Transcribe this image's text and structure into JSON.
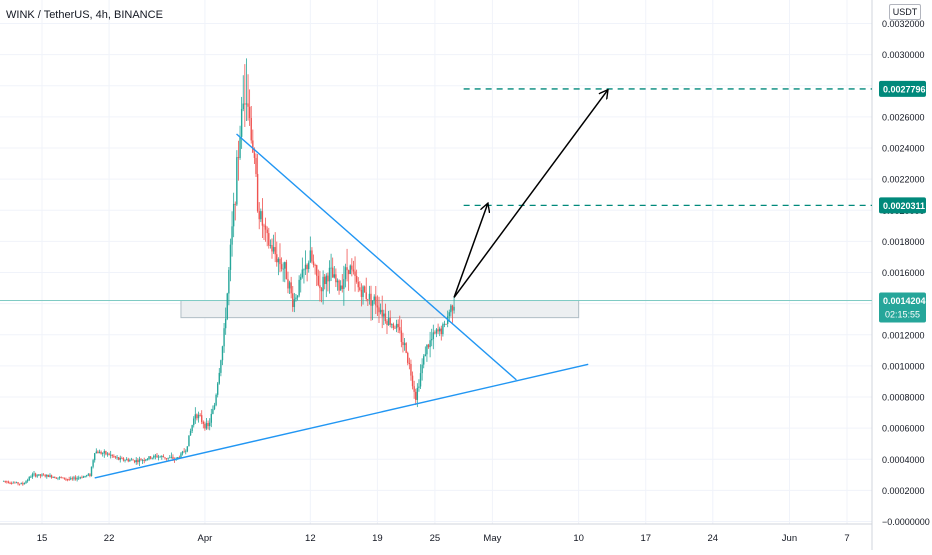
{
  "header": {
    "symbol_title": "WINK / TetherUS, 4h, BINANCE",
    "currency_label": "USDT"
  },
  "colors": {
    "up": "#26a69a",
    "down": "#ef5350",
    "trendline": "#2196f3",
    "target_line": "#00897b",
    "price_line": "#80cbc4",
    "zone_fill": "#eceff1",
    "zone_stroke": "#b0bec5",
    "arrow": "#000000",
    "grid": "#f0f3fa",
    "axis_text": "#131722"
  },
  "chart_data": {
    "type": "candlestick",
    "title": "WINK / TetherUS, 4h, BINANCE",
    "ylim": [
      -0.0,
      0.0032
    ],
    "y_ticks": [
      {
        "value": 0.0032,
        "label": "0.0032000"
      },
      {
        "value": 0.003,
        "label": "0.0030000"
      },
      {
        "value": 0.0028,
        "label": "0.0028000"
      },
      {
        "value": 0.0026,
        "label": "0.0026000"
      },
      {
        "value": 0.0024,
        "label": "0.0024000"
      },
      {
        "value": 0.0022,
        "label": "0.0022000"
      },
      {
        "value": 0.002,
        "label": "0.0020000"
      },
      {
        "value": 0.0018,
        "label": "0.0018000"
      },
      {
        "value": 0.0016,
        "label": "0.0016000"
      },
      {
        "value": 0.0014,
        "label": "0.0014000"
      },
      {
        "value": 0.0012,
        "label": "0.0012000"
      },
      {
        "value": 0.001,
        "label": "0.0010000"
      },
      {
        "value": 0.0008,
        "label": "0.0008000"
      },
      {
        "value": 0.0006,
        "label": "0.0006000"
      },
      {
        "value": 0.0004,
        "label": "0.0004000"
      },
      {
        "value": 0.0002,
        "label": "0.0002000"
      },
      {
        "value": 0.0,
        "label": "−0.0000000"
      }
    ],
    "x_ticks": [
      {
        "day": 15,
        "label": "15"
      },
      {
        "day": 22,
        "label": "22"
      },
      {
        "day": 32,
        "label": "Apr"
      },
      {
        "day": 43,
        "label": "12"
      },
      {
        "day": 50,
        "label": "19"
      },
      {
        "day": 56,
        "label": "25"
      },
      {
        "day": 62,
        "label": "May"
      },
      {
        "day": 71,
        "label": "10"
      },
      {
        "day": 78,
        "label": "17"
      },
      {
        "day": 85,
        "label": "24"
      },
      {
        "day": 93,
        "label": "Jun"
      },
      {
        "day": 99,
        "label": "7"
      }
    ],
    "x_range_days": [
      11.0,
      103.0
    ],
    "price_anchors": [
      [
        11.0,
        0.00026
      ],
      [
        13.0,
        0.00024
      ],
      [
        14.0,
        0.0003
      ],
      [
        16.0,
        0.00029
      ],
      [
        18.0,
        0.00027
      ],
      [
        20.0,
        0.0003
      ],
      [
        20.5,
        0.00045
      ],
      [
        22.0,
        0.00043
      ],
      [
        23.0,
        0.0004
      ],
      [
        25.0,
        0.00039
      ],
      [
        27.0,
        0.00042
      ],
      [
        29.0,
        0.0004
      ],
      [
        30.0,
        0.00046
      ],
      [
        31.0,
        0.0007
      ],
      [
        32.3,
        0.0006
      ],
      [
        33.0,
        0.00075
      ],
      [
        34.0,
        0.0012
      ],
      [
        35.0,
        0.002
      ],
      [
        35.8,
        0.0026
      ],
      [
        36.3,
        0.0028
      ],
      [
        37.0,
        0.0024
      ],
      [
        37.6,
        0.002
      ],
      [
        38.5,
        0.0018
      ],
      [
        39.5,
        0.0017
      ],
      [
        40.5,
        0.0016
      ],
      [
        41.2,
        0.0014
      ],
      [
        42.0,
        0.00155
      ],
      [
        43.0,
        0.0017
      ],
      [
        44.0,
        0.0015
      ],
      [
        45.0,
        0.0016
      ],
      [
        46.0,
        0.0015
      ],
      [
        47.0,
        0.00165
      ],
      [
        48.0,
        0.0015
      ],
      [
        49.0,
        0.00145
      ],
      [
        50.0,
        0.0014
      ],
      [
        51.0,
        0.0013
      ],
      [
        52.0,
        0.00125
      ],
      [
        53.0,
        0.0011
      ],
      [
        54.0,
        0.0008
      ],
      [
        55.0,
        0.0011
      ],
      [
        56.0,
        0.0012
      ],
      [
        57.0,
        0.00125
      ],
      [
        57.5,
        0.00135
      ],
      [
        58.0,
        0.00142
      ]
    ],
    "support_line": {
      "from": [
        20.5,
        0.00028
      ],
      "to": [
        72.0,
        0.00101
      ]
    },
    "resistance_line": {
      "from": [
        35.3,
        0.00249
      ],
      "to": [
        64.5,
        0.00091
      ]
    },
    "zone": {
      "from_day": 29.5,
      "to_day": 71.0,
      "low": 0.00131,
      "high": 0.00142
    },
    "current_price": {
      "value": 0.0014204,
      "label": "0.0014204",
      "countdown": "02:15:55"
    },
    "targets": [
      {
        "value": 0.0020311,
        "label": "0.0020311",
        "from_day": 59.0
      },
      {
        "value": 0.0027796,
        "label": "0.0027796",
        "from_day": 59.0
      }
    ],
    "projection_arrows": [
      {
        "from": [
          58.0,
          0.00144
        ],
        "to": [
          61.5,
          0.00204
        ]
      },
      {
        "from": [
          58.0,
          0.00144
        ],
        "to": [
          74.0,
          0.00277
        ]
      }
    ]
  }
}
